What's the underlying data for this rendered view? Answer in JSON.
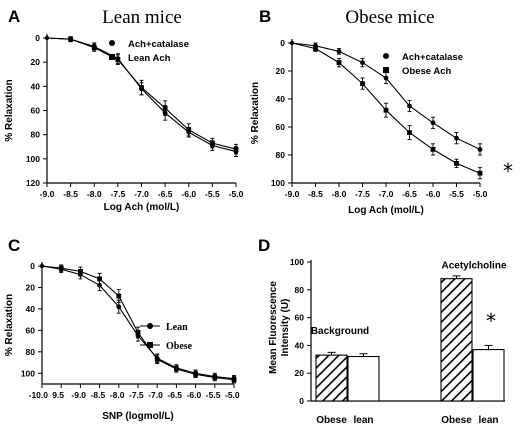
{
  "chart_data": [
    {
      "panel": "A",
      "type": "line",
      "title": "Lean mice",
      "xlabel": "Log Ach (mol/L)",
      "ylabel": "% Relaxation",
      "xlim": [
        -9.0,
        -5.0
      ],
      "ylim": [
        0,
        120
      ],
      "y_inverted": true,
      "x_ticks": [
        "-9.0",
        "-8.5",
        "-8.0",
        "-7.5",
        "-7.0",
        "-6.5",
        "-6.0",
        "-5.5",
        "-5.0"
      ],
      "y_ticks": [
        "0",
        "20",
        "40",
        "60",
        "80",
        "100",
        "120"
      ],
      "legend_position": "top-right",
      "series": [
        {
          "name": "Ach+catalase",
          "marker": "circle",
          "x": [
            -8.5,
            -8.0,
            -7.5,
            -7.0,
            -6.5,
            -6.0,
            -5.5,
            -5.0
          ],
          "y": [
            1,
            7,
            17,
            42,
            62,
            78,
            89,
            94
          ],
          "err": [
            2,
            3,
            4,
            5,
            6,
            4,
            4,
            4
          ]
        },
        {
          "name": "Lean Ach",
          "marker": "square",
          "x": [
            -8.5,
            -8.0,
            -7.5,
            -7.0,
            -6.5,
            -6.0,
            -5.5,
            -5.0
          ],
          "y": [
            1,
            8,
            18,
            41,
            58,
            76,
            87,
            92
          ],
          "err": [
            2,
            3,
            4,
            6,
            6,
            5,
            4,
            4
          ]
        }
      ]
    },
    {
      "panel": "B",
      "type": "line",
      "title": "Obese mice",
      "xlabel": "Log Ach  (mol/L)",
      "ylabel": "% Relaxation",
      "xlim": [
        -9.0,
        -5.0
      ],
      "ylim": [
        0,
        100
      ],
      "y_inverted": true,
      "x_ticks": [
        "-9.0",
        "-8.5",
        "-8.0",
        "-7.5",
        "-7.0",
        "-6.5",
        "-6.0",
        "-5.5",
        "-5.0"
      ],
      "y_ticks": [
        "0",
        "20",
        "40",
        "60",
        "80",
        "100"
      ],
      "legend_position": "top-right",
      "annotation": "*",
      "series": [
        {
          "name": "Ach+catalase",
          "marker": "circle",
          "x": [
            -8.5,
            -8.0,
            -7.5,
            -7.0,
            -6.5,
            -6.0,
            -5.5,
            -5.0
          ],
          "y": [
            2,
            6,
            14,
            25,
            45,
            57,
            68,
            76
          ],
          "err": [
            2,
            2,
            3,
            4,
            4,
            4,
            4,
            4
          ]
        },
        {
          "name": "Obese Ach",
          "marker": "square",
          "x": [
            -8.5,
            -8.0,
            -7.5,
            -7.0,
            -6.5,
            -6.0,
            -5.5,
            -5.0
          ],
          "y": [
            4,
            14,
            29,
            48,
            64,
            76,
            86,
            93
          ],
          "err": [
            2,
            3,
            4,
            5,
            5,
            4,
            3,
            4
          ]
        }
      ]
    },
    {
      "panel": "C",
      "type": "line",
      "xlabel": "SNP (logmol/L)",
      "ylabel": "% Relaxation",
      "xlim": [
        -10.0,
        -5.0
      ],
      "ylim": [
        0,
        110
      ],
      "y_inverted": true,
      "x_ticks": [
        "-10.0",
        "9.5",
        "-9.0",
        "-8.5",
        "-8.0",
        "-7.5",
        "-7.0",
        "-6.5",
        "-6.0",
        "-5.5",
        "-5.0"
      ],
      "y_ticks": [
        "0",
        "20",
        "40",
        "60",
        "80",
        "100"
      ],
      "legend_position": "right",
      "series": [
        {
          "name": "Lean",
          "marker": "circle",
          "x": [
            -9.5,
            -9.0,
            -8.5,
            -8.0,
            -7.5,
            -7.0,
            -6.5,
            -6.0,
            -5.5,
            -5.0
          ],
          "y": [
            3,
            8,
            18,
            38,
            65,
            86,
            95,
            100,
            103,
            105
          ],
          "err": [
            3,
            4,
            5,
            6,
            5,
            4,
            3,
            3,
            3,
            3
          ]
        },
        {
          "name": "Obese",
          "marker": "square",
          "x": [
            -9.5,
            -9.0,
            -8.5,
            -8.0,
            -7.5,
            -7.0,
            -6.5,
            -6.0,
            -5.5,
            -5.0
          ],
          "y": [
            2,
            5,
            12,
            28,
            62,
            87,
            96,
            101,
            104,
            106
          ],
          "err": [
            3,
            4,
            5,
            6,
            5,
            4,
            3,
            3,
            3,
            3
          ]
        }
      ]
    },
    {
      "panel": "D",
      "type": "bar",
      "ylabel": "Mean Fluorescence Intensity (U)",
      "ylim": [
        0,
        100
      ],
      "y_ticks": [
        "0",
        "20",
        "40",
        "60",
        "80",
        "100"
      ],
      "groups": [
        {
          "label": "Background",
          "categories": [
            "Obese",
            "lean"
          ],
          "values": [
            33,
            32
          ],
          "err": [
            2,
            2
          ]
        },
        {
          "label": "Acetylcholine",
          "categories": [
            "Obese",
            "lean"
          ],
          "values": [
            88,
            37
          ],
          "err": [
            2,
            3
          ]
        }
      ],
      "bar_styles": {
        "Obese": "hatched",
        "lean": "white"
      },
      "annotation": "*"
    }
  ]
}
